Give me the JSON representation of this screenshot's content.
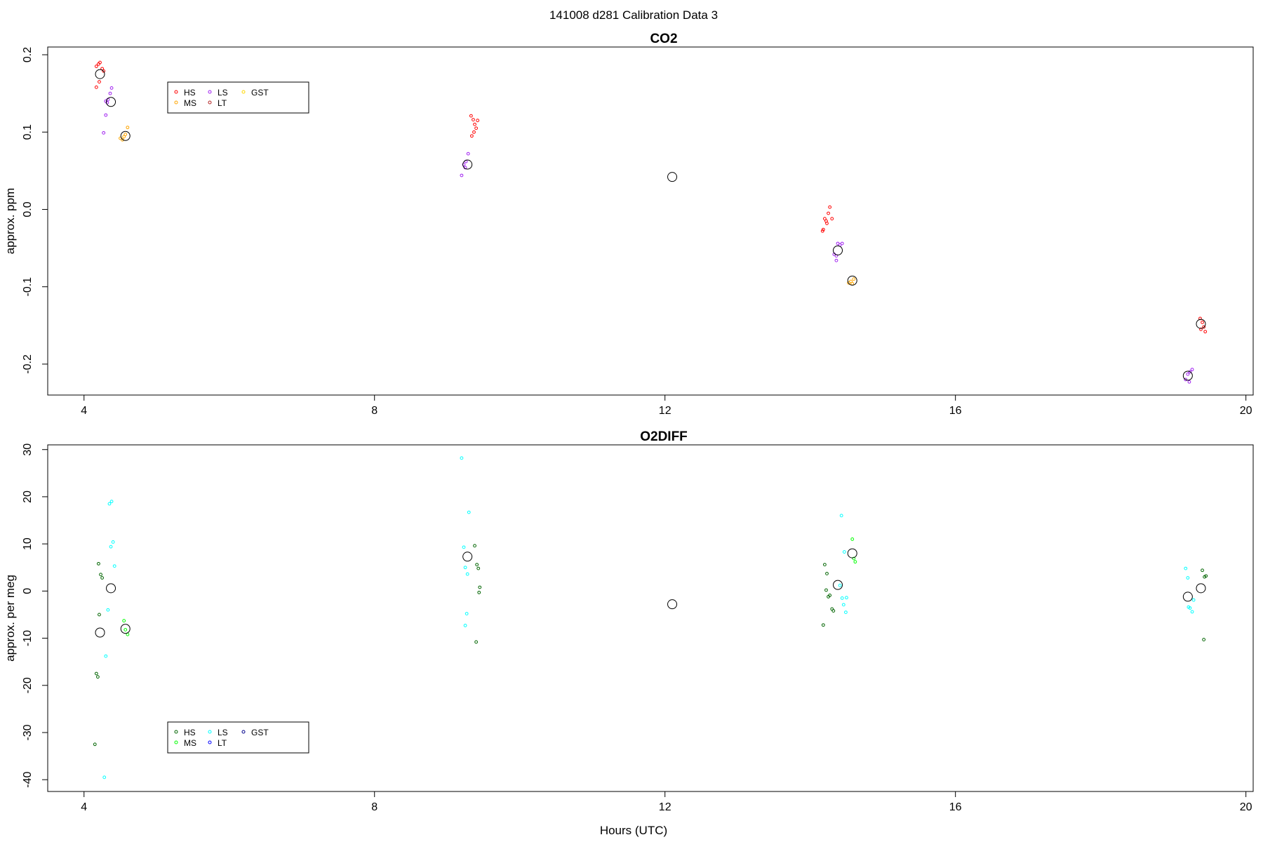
{
  "figure_title": "141008   d281   Calibration Data 3",
  "x_axis_label": "Hours (UTC)",
  "chart_data": [
    {
      "type": "scatter",
      "title": "CO2",
      "xlabel": "",
      "ylabel": "approx. ppm",
      "xlim": [
        3.5,
        20.1
      ],
      "ylim": [
        -0.24,
        0.21
      ],
      "xticks": [
        4,
        8,
        12,
        16,
        20
      ],
      "yticks": [
        -0.2,
        -0.1,
        0.0,
        0.1,
        0.2
      ],
      "ytick_labels": [
        "-0.2",
        "-0.1",
        "0.0",
        "0.1",
        "0.2"
      ],
      "grid": false,
      "legend": {
        "position": "top-left",
        "entries": [
          {
            "name": "HS",
            "color": "#ff0000"
          },
          {
            "name": "MS",
            "color": "#ffa500"
          },
          {
            "name": "LS",
            "color": "#a020f0"
          },
          {
            "name": "LT",
            "color": "#b22222"
          },
          {
            "name": "GST",
            "color": "#ffd700"
          }
        ]
      },
      "series": [
        {
          "name": "HS",
          "color": "#ff0000",
          "x": [
            4.17,
            4.2,
            4.22,
            4.25,
            4.27,
            4.21,
            4.17,
            9.33,
            9.36,
            9.38,
            9.4,
            9.37,
            9.34,
            9.42,
            14.17,
            14.2,
            14.22,
            14.25,
            14.27,
            14.3,
            14.18,
            14.23,
            19.37,
            19.4,
            19.42,
            19.38,
            19.44
          ],
          "y": [
            0.185,
            0.188,
            0.19,
            0.182,
            0.179,
            0.165,
            0.158,
            0.121,
            0.116,
            0.11,
            0.105,
            0.1,
            0.095,
            0.115,
            -0.028,
            -0.012,
            -0.015,
            -0.005,
            0.003,
            -0.012,
            -0.026,
            -0.018,
            -0.141,
            -0.146,
            -0.152,
            -0.155,
            -0.158
          ]
        },
        {
          "name": "MS",
          "color": "#ffa500",
          "x": [
            4.5,
            4.53,
            4.57,
            4.6,
            4.55,
            14.53,
            14.56,
            14.6,
            14.58
          ],
          "y": [
            0.092,
            0.09,
            0.097,
            0.106,
            0.094,
            -0.095,
            -0.093,
            -0.09,
            -0.096
          ]
        },
        {
          "name": "LS",
          "color": "#a020f0",
          "x": [
            4.27,
            4.3,
            4.33,
            4.36,
            4.38,
            4.3,
            4.32,
            9.2,
            9.23,
            9.26,
            9.29,
            9.25,
            14.33,
            14.36,
            14.38,
            14.41,
            14.44,
            14.36,
            19.17,
            19.2,
            19.23,
            19.26,
            19.22
          ],
          "y": [
            0.099,
            0.122,
            0.142,
            0.15,
            0.157,
            0.14,
            0.138,
            0.044,
            0.058,
            0.062,
            0.072,
            0.054,
            -0.058,
            -0.066,
            -0.044,
            -0.046,
            -0.044,
            -0.06,
            -0.22,
            -0.213,
            -0.21,
            -0.207,
            -0.223
          ]
        },
        {
          "name": "LT",
          "color": "#b22222",
          "x": [],
          "y": []
        },
        {
          "name": "GST",
          "color": "#ffd700",
          "x": [],
          "y": []
        }
      ],
      "means": {
        "color": "#000000",
        "x": [
          4.22,
          4.37,
          4.57,
          9.28,
          12.1,
          14.38,
          14.58,
          19.2,
          19.38
        ],
        "y": [
          0.175,
          0.139,
          0.095,
          0.058,
          0.042,
          -0.053,
          -0.092,
          -0.215,
          -0.148
        ]
      }
    },
    {
      "type": "scatter",
      "title": "O2DIFF",
      "xlabel": "Hours (UTC)",
      "ylabel": "approx. per meg",
      "xlim": [
        3.5,
        20.1
      ],
      "ylim": [
        -42.5,
        31
      ],
      "xticks": [
        4,
        8,
        12,
        16,
        20
      ],
      "yticks": [
        -40,
        -30,
        -20,
        -10,
        0,
        10,
        20,
        30
      ],
      "ytick_labels": [
        "-40",
        "-30",
        "-20",
        "-10",
        "0",
        "10",
        "20",
        "30"
      ],
      "grid": false,
      "legend": {
        "position": "bottom-left",
        "entries": [
          {
            "name": "HS",
            "color": "#006400"
          },
          {
            "name": "MS",
            "color": "#00ff00"
          },
          {
            "name": "LS",
            "color": "#00ffff"
          },
          {
            "name": "LT",
            "color": "#0000ff"
          },
          {
            "name": "GST",
            "color": "#00008b"
          }
        ]
      },
      "series": [
        {
          "name": "HS",
          "color": "#006400",
          "x": [
            4.2,
            4.23,
            4.25,
            4.21,
            4.17,
            4.19,
            4.15,
            9.38,
            9.41,
            9.43,
            9.45,
            9.44,
            9.4,
            14.2,
            14.23,
            14.25,
            14.27,
            14.3,
            14.32,
            14.22,
            14.18,
            19.4,
            19.43,
            19.45,
            19.42
          ],
          "y": [
            5.8,
            3.5,
            2.8,
            -5.0,
            -17.5,
            -18.2,
            -32.5,
            9.6,
            5.6,
            4.8,
            0.8,
            -0.3,
            -10.8,
            5.6,
            3.7,
            -1.2,
            -0.9,
            -3.8,
            -4.2,
            0.2,
            -7.2,
            4.4,
            3.0,
            3.2,
            -10.3
          ]
        },
        {
          "name": "MS",
          "color": "#00ff00",
          "x": [
            4.55,
            4.57,
            4.6,
            14.58,
            14.6,
            14.62
          ],
          "y": [
            -6.3,
            -8.2,
            -9.2,
            11.0,
            6.9,
            6.2
          ]
        },
        {
          "name": "LS",
          "color": "#00ffff",
          "x": [
            4.35,
            4.38,
            4.4,
            4.42,
            4.37,
            4.33,
            4.3,
            4.28,
            9.2,
            9.23,
            9.25,
            9.28,
            9.3,
            9.27,
            9.25,
            14.43,
            14.47,
            14.5,
            14.46,
            14.49,
            14.44,
            14.41,
            19.17,
            19.2,
            19.23,
            19.26,
            19.21,
            19.28
          ],
          "y": [
            18.5,
            19.0,
            10.4,
            5.3,
            9.4,
            -4.0,
            -13.8,
            -39.5,
            28.2,
            9.3,
            5.0,
            3.6,
            16.7,
            -4.8,
            -7.3,
            16.0,
            8.3,
            -1.4,
            -2.9,
            -4.5,
            -1.5,
            1.2,
            4.8,
            2.8,
            -3.6,
            -4.4,
            -3.4,
            -1.9
          ]
        },
        {
          "name": "LT",
          "color": "#0000ff",
          "x": [],
          "y": []
        },
        {
          "name": "GST",
          "color": "#00008b",
          "x": [],
          "y": []
        }
      ],
      "means": {
        "color": "#000000",
        "x": [
          4.22,
          4.37,
          4.57,
          9.28,
          12.1,
          14.38,
          14.58,
          19.2,
          19.38
        ],
        "y": [
          -8.8,
          0.6,
          -8.0,
          7.3,
          -2.8,
          1.3,
          8.0,
          -1.2,
          0.6
        ]
      }
    }
  ]
}
